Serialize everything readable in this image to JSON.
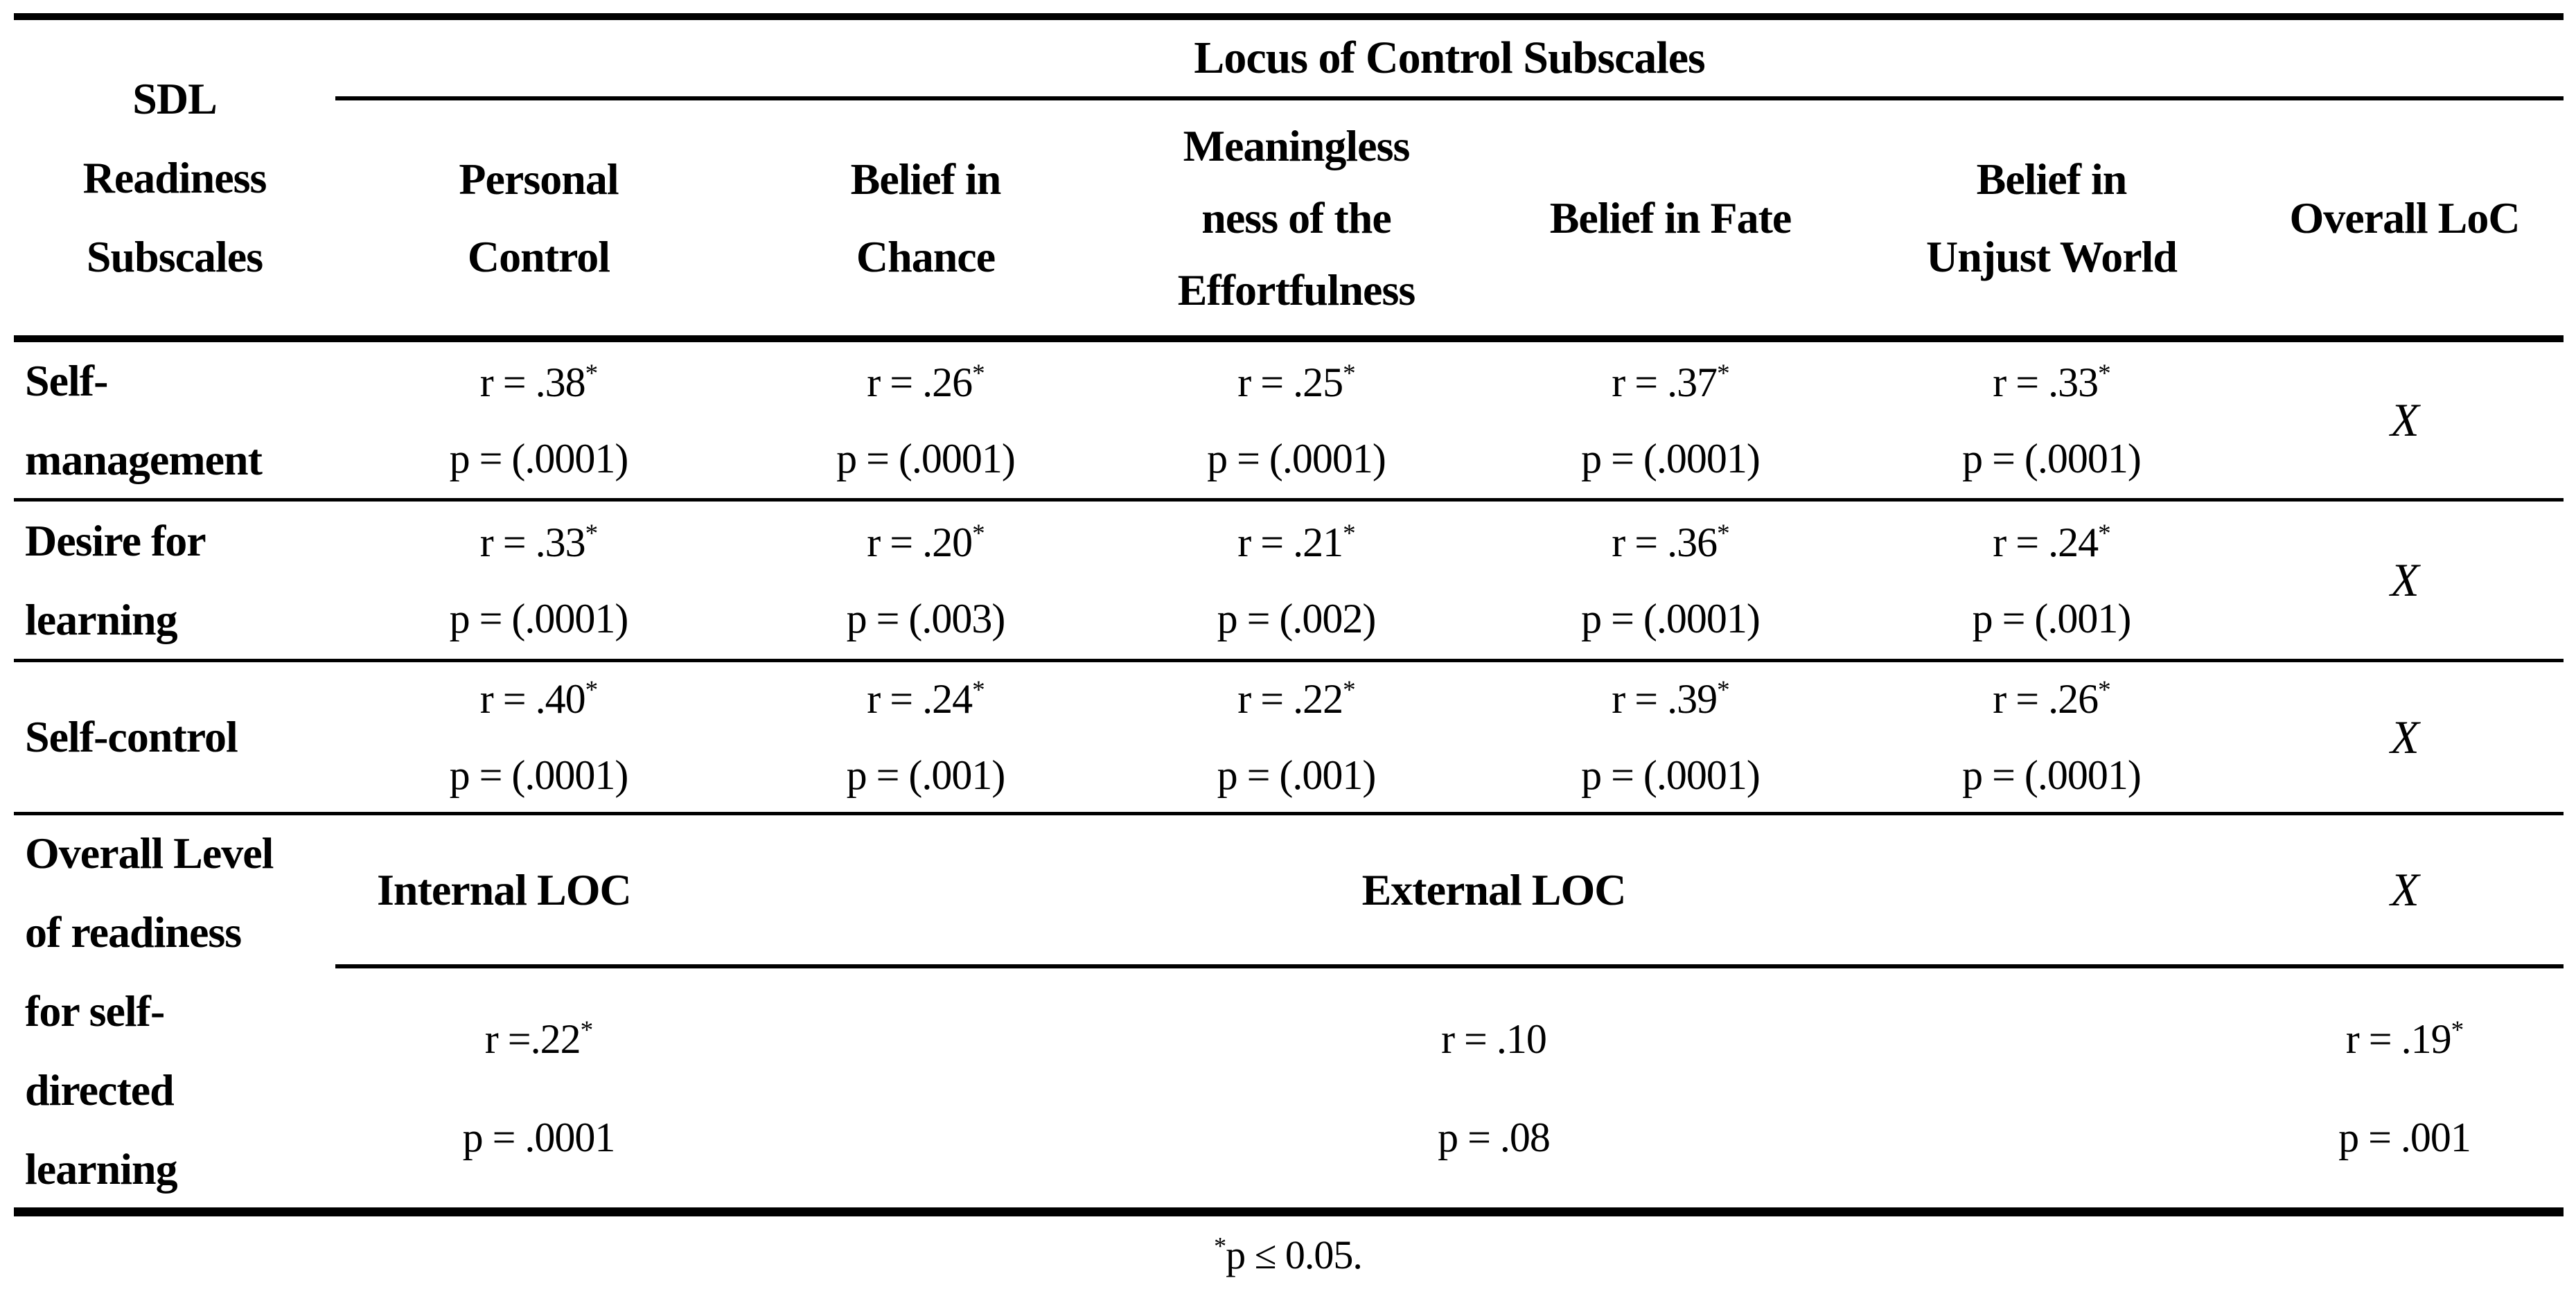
{
  "table": {
    "corner_header_lines": [
      "SDL",
      "Readiness",
      "Subscales"
    ],
    "group_header": "Locus of Control Subscales",
    "columns": [
      [
        "Personal",
        "Control"
      ],
      [
        "Belief in",
        "Chance"
      ],
      [
        "Meaningless",
        "ness of the",
        "Effortfulness"
      ],
      [
        "Belief in Fate"
      ],
      [
        "Belief in",
        "Unjust World"
      ],
      [
        "Overall LoC"
      ]
    ],
    "rows": [
      {
        "label_lines": [
          "Self-",
          "management"
        ],
        "cells": [
          [
            "r = .38*",
            "p = (.0001)"
          ],
          [
            "r = .26*",
            "p = (.0001)"
          ],
          [
            "r = .25*",
            "p = (.0001)"
          ],
          [
            "r = .37*",
            "p = (.0001)"
          ],
          [
            "r = .33*",
            "p = (.0001)"
          ],
          [
            "X"
          ]
        ]
      },
      {
        "label_lines": [
          "Desire for",
          "learning"
        ],
        "cells": [
          [
            "r = .33*",
            "p = (.0001)"
          ],
          [
            "r = .20*",
            "p = (.003)"
          ],
          [
            "r = .21*",
            "p = (.002)"
          ],
          [
            "r = .36*",
            "p = (.0001)"
          ],
          [
            "r = .24*",
            "p = (.001)"
          ],
          [
            "X"
          ]
        ]
      },
      {
        "label_lines": [
          "Self-control"
        ],
        "cells": [
          [
            "r = .40*",
            "p = (.0001)"
          ],
          [
            "r = .24*",
            "p = (.001)"
          ],
          [
            "r = .22*",
            "p = (.001)"
          ],
          [
            "r = .39*",
            "p = (.0001)"
          ],
          [
            "r = .26*",
            "p = (.0001)"
          ],
          [
            "X"
          ]
        ]
      }
    ],
    "overall_row": {
      "label_lines": [
        "Overall Level",
        "of readiness",
        "for self-",
        "directed",
        "learning"
      ],
      "internal_header": "Internal LOC",
      "external_header": "External LOC",
      "overall_x": "X",
      "internal_values": [
        "r =.22*",
        "p = .0001"
      ],
      "external_values": [
        "r = .10",
        "p = .08"
      ],
      "overall_values": [
        "r = .19*",
        "p = .001"
      ]
    },
    "footnote": {
      "star": "*",
      "text": "p ≤ 0.05."
    }
  }
}
